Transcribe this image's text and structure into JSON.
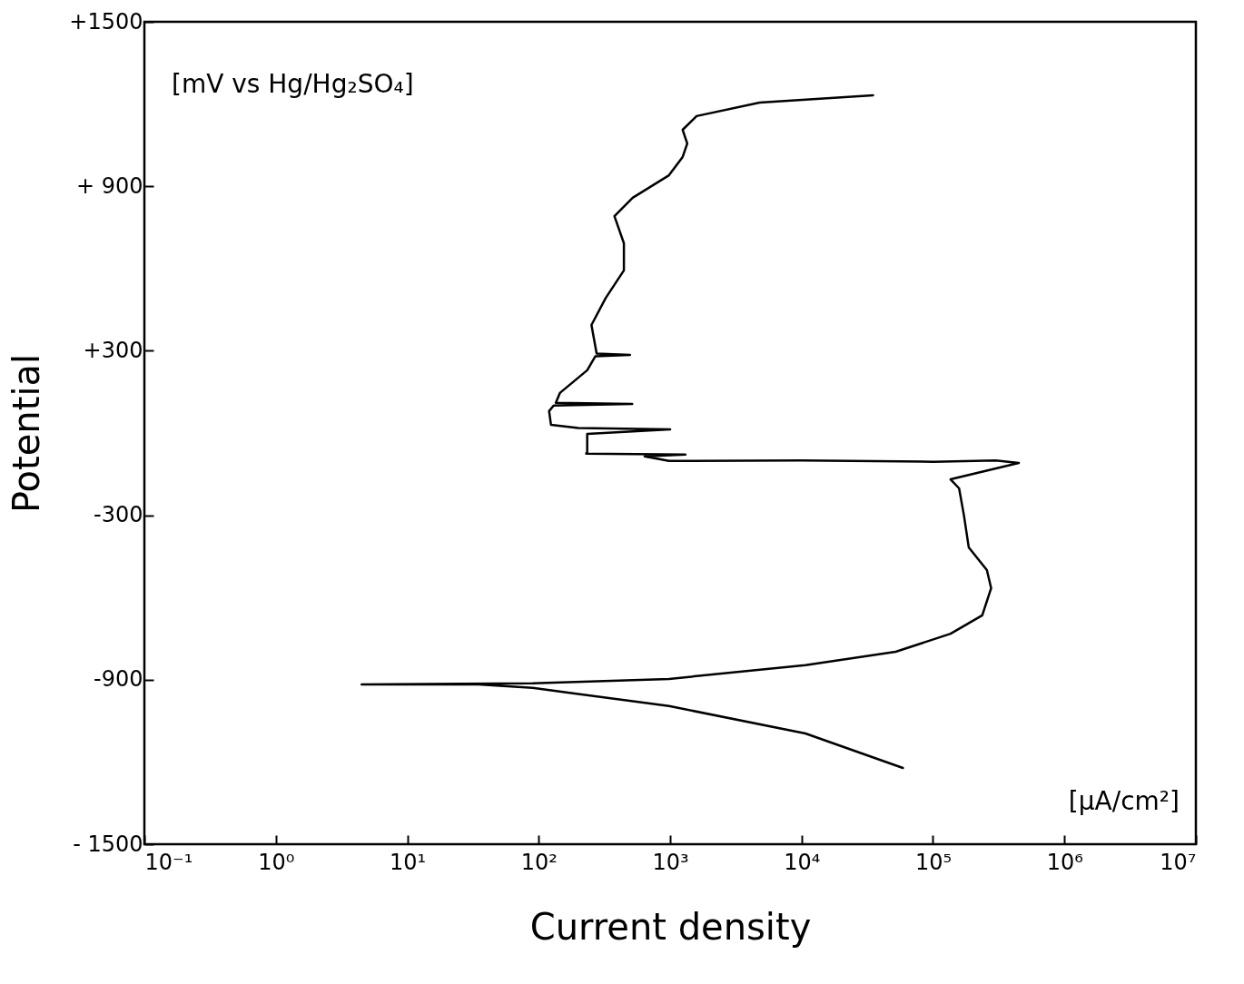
{
  "chart_data": {
    "type": "line",
    "xlabel": "Current density",
    "ylabel": "Potential",
    "annotations": [
      "[mV vs Hg/Hg₂SO₄]",
      "[μA/cm²]"
    ],
    "log": "x",
    "marker": "none",
    "line_style": "solid",
    "xlim": [
      0.1,
      10000000
    ],
    "ylim": [
      -1500,
      1500
    ],
    "xticks": [
      {
        "value": 0.1,
        "label": "10⁻¹"
      },
      {
        "value": 1,
        "label": "10⁰"
      },
      {
        "value": 10,
        "label": "10¹"
      },
      {
        "value": 100,
        "label": "10²"
      },
      {
        "value": 1000,
        "label": "10³"
      },
      {
        "value": 10000,
        "label": "10⁴"
      },
      {
        "value": 100000,
        "label": "10⁵"
      },
      {
        "value": 1000000,
        "label": "10⁶"
      },
      {
        "value": 10000000,
        "label": "10⁷"
      }
    ],
    "yticks": [
      {
        "value": 1500,
        "label": "+1500"
      },
      {
        "value": 900,
        "label": "+ 900"
      },
      {
        "value": 300,
        "label": "+300"
      },
      {
        "value": -300,
        "label": "-300"
      },
      {
        "value": -900,
        "label": "-900"
      },
      {
        "value": -1500,
        "label": "- 1500"
      }
    ],
    "series": [
      {
        "color": "#000000",
        "x": [
          59000,
          10700,
          980,
          90,
          35,
          4.5,
          90,
          980,
          10700,
          52000,
          136000,
          237000,
          277000,
          257000,
          187000,
          172000,
          158000,
          136000,
          450000,
          300000,
          100000,
          10000,
          980,
          640,
          1306,
          230,
          234,
          234,
          1000,
          200,
          124,
          120,
          130,
          515,
          135,
          145,
          234,
          270,
          495,
          276,
          252,
          324,
          445,
          445,
          377,
          519,
          980,
          1245,
          1350,
          1245,
          1590,
          4800,
          35000
        ],
        "values": [
          -1222,
          -1096,
          -996,
          -930,
          -917,
          -917,
          -913,
          -897,
          -847,
          -798,
          -732,
          -665,
          -566,
          -500,
          -417,
          -301,
          -202,
          -169,
          -109,
          -100,
          -105,
          -100,
          -102,
          -85,
          -79,
          -75,
          -69,
          -3,
          13,
          18,
          30,
          80,
          100,
          106,
          110,
          146,
          229,
          280,
          285,
          290,
          394,
          493,
          593,
          692,
          791,
          858,
          940,
          1007,
          1056,
          1106,
          1156,
          1205,
          1232
        ]
      }
    ]
  }
}
